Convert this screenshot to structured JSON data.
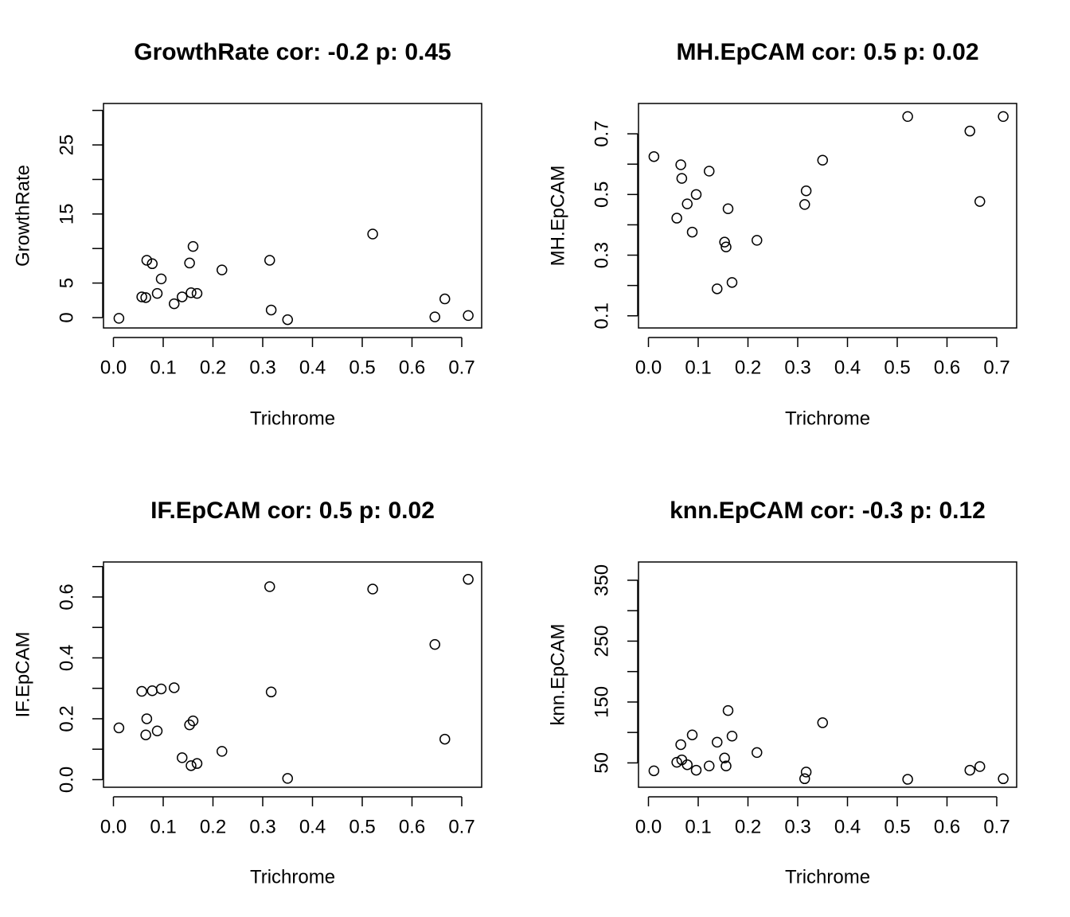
{
  "chart_data": [
    {
      "type": "scatter",
      "title": "GrowthRate cor: -0.2 p: 0.45",
      "xlabel": "Trichrome",
      "ylabel": "GrowthRate",
      "xlim": [
        -0.02,
        0.74
      ],
      "ylim": [
        -1.5,
        31
      ],
      "x_ticks": [
        0.0,
        0.1,
        0.2,
        0.3,
        0.4,
        0.5,
        0.6,
        0.7
      ],
      "x_tick_labels": [
        "0.0",
        "0.1",
        "0.2",
        "0.3",
        "0.4",
        "0.5",
        "0.6",
        "0.7"
      ],
      "y_ticks": [
        0,
        5,
        10,
        15,
        20,
        25,
        30
      ],
      "y_tick_labels": [
        "0",
        "5",
        "",
        "15",
        "",
        "25",
        ""
      ],
      "points": [
        {
          "x": 0.011,
          "y": -0.1
        },
        {
          "x": 0.057,
          "y": 3.0
        },
        {
          "x": 0.065,
          "y": 2.9
        },
        {
          "x": 0.067,
          "y": 8.3
        },
        {
          "x": 0.078,
          "y": 7.8
        },
        {
          "x": 0.088,
          "y": 3.5
        },
        {
          "x": 0.096,
          "y": 5.6
        },
        {
          "x": 0.122,
          "y": 2.0
        },
        {
          "x": 0.138,
          "y": 3.0
        },
        {
          "x": 0.153,
          "y": 7.9
        },
        {
          "x": 0.156,
          "y": 3.6
        },
        {
          "x": 0.16,
          "y": 10.3
        },
        {
          "x": 0.168,
          "y": 3.5
        },
        {
          "x": 0.218,
          "y": 6.9
        },
        {
          "x": 0.314,
          "y": 8.3
        },
        {
          "x": 0.317,
          "y": 1.1
        },
        {
          "x": 0.35,
          "y": -0.3
        },
        {
          "x": 0.521,
          "y": 12.1
        },
        {
          "x": 0.646,
          "y": 0.1
        },
        {
          "x": 0.666,
          "y": 2.7
        },
        {
          "x": 0.713,
          "y": 0.3
        }
      ]
    },
    {
      "type": "scatter",
      "title": "MH.EpCAM cor: 0.5 p: 0.02",
      "xlabel": "Trichrome",
      "ylabel": "MH.EpCAM",
      "xlim": [
        -0.02,
        0.74
      ],
      "ylim": [
        0.06,
        0.8
      ],
      "x_ticks": [
        0.0,
        0.1,
        0.2,
        0.3,
        0.4,
        0.5,
        0.6,
        0.7
      ],
      "x_tick_labels": [
        "0.0",
        "0.1",
        "0.2",
        "0.3",
        "0.4",
        "0.5",
        "0.6",
        "0.7"
      ],
      "y_ticks": [
        0.1,
        0.2,
        0.3,
        0.4,
        0.5,
        0.6,
        0.7
      ],
      "y_tick_labels": [
        "0.1",
        "",
        "0.3",
        "",
        "0.5",
        "",
        "0.7"
      ],
      "points": [
        {
          "x": 0.011,
          "y": 0.625
        },
        {
          "x": 0.057,
          "y": 0.422
        },
        {
          "x": 0.065,
          "y": 0.598
        },
        {
          "x": 0.067,
          "y": 0.553
        },
        {
          "x": 0.078,
          "y": 0.469
        },
        {
          "x": 0.088,
          "y": 0.376
        },
        {
          "x": 0.096,
          "y": 0.5
        },
        {
          "x": 0.122,
          "y": 0.577
        },
        {
          "x": 0.138,
          "y": 0.189
        },
        {
          "x": 0.153,
          "y": 0.343
        },
        {
          "x": 0.156,
          "y": 0.327
        },
        {
          "x": 0.16,
          "y": 0.453
        },
        {
          "x": 0.168,
          "y": 0.21
        },
        {
          "x": 0.218,
          "y": 0.349
        },
        {
          "x": 0.314,
          "y": 0.467
        },
        {
          "x": 0.317,
          "y": 0.512
        },
        {
          "x": 0.35,
          "y": 0.613
        },
        {
          "x": 0.521,
          "y": 0.757
        },
        {
          "x": 0.646,
          "y": 0.709
        },
        {
          "x": 0.666,
          "y": 0.477
        },
        {
          "x": 0.713,
          "y": 0.757
        }
      ]
    },
    {
      "type": "scatter",
      "title": "IF.EpCAM cor: 0.5 p: 0.02",
      "xlabel": "Trichrome",
      "ylabel": "IF.EpCAM",
      "xlim": [
        -0.02,
        0.74
      ],
      "ylim": [
        -0.025,
        0.715
      ],
      "x_ticks": [
        0.0,
        0.1,
        0.2,
        0.3,
        0.4,
        0.5,
        0.6,
        0.7
      ],
      "x_tick_labels": [
        "0.0",
        "0.1",
        "0.2",
        "0.3",
        "0.4",
        "0.5",
        "0.6",
        "0.7"
      ],
      "y_ticks": [
        0.0,
        0.1,
        0.2,
        0.3,
        0.4,
        0.5,
        0.6,
        0.7
      ],
      "y_tick_labels": [
        "0.0",
        "",
        "0.2",
        "",
        "0.4",
        "",
        "0.6",
        ""
      ],
      "points": [
        {
          "x": 0.011,
          "y": 0.17
        },
        {
          "x": 0.057,
          "y": 0.29
        },
        {
          "x": 0.065,
          "y": 0.147
        },
        {
          "x": 0.067,
          "y": 0.2
        },
        {
          "x": 0.078,
          "y": 0.292
        },
        {
          "x": 0.088,
          "y": 0.16
        },
        {
          "x": 0.096,
          "y": 0.298
        },
        {
          "x": 0.122,
          "y": 0.302
        },
        {
          "x": 0.138,
          "y": 0.072
        },
        {
          "x": 0.153,
          "y": 0.18
        },
        {
          "x": 0.156,
          "y": 0.046
        },
        {
          "x": 0.16,
          "y": 0.193
        },
        {
          "x": 0.168,
          "y": 0.053
        },
        {
          "x": 0.218,
          "y": 0.093
        },
        {
          "x": 0.314,
          "y": 0.634
        },
        {
          "x": 0.317,
          "y": 0.288
        },
        {
          "x": 0.35,
          "y": 0.004
        },
        {
          "x": 0.521,
          "y": 0.626
        },
        {
          "x": 0.646,
          "y": 0.444
        },
        {
          "x": 0.666,
          "y": 0.133
        },
        {
          "x": 0.713,
          "y": 0.658
        }
      ]
    },
    {
      "type": "scatter",
      "title": "knn.EpCAM cor: -0.3 p: 0.12",
      "xlabel": "Trichrome",
      "ylabel": "knn.EpCAM",
      "xlim": [
        -0.02,
        0.74
      ],
      "ylim": [
        10,
        380
      ],
      "x_ticks": [
        0.0,
        0.1,
        0.2,
        0.3,
        0.4,
        0.5,
        0.6,
        0.7
      ],
      "x_tick_labels": [
        "0.0",
        "0.1",
        "0.2",
        "0.3",
        "0.4",
        "0.5",
        "0.6",
        "0.7"
      ],
      "y_ticks": [
        50,
        100,
        150,
        200,
        250,
        300,
        350
      ],
      "y_tick_labels": [
        "50",
        "",
        "150",
        "",
        "250",
        "",
        "350"
      ],
      "points": [
        {
          "x": 0.011,
          "y": 37
        },
        {
          "x": 0.057,
          "y": 51
        },
        {
          "x": 0.065,
          "y": 80
        },
        {
          "x": 0.067,
          "y": 55
        },
        {
          "x": 0.078,
          "y": 47
        },
        {
          "x": 0.088,
          "y": 96
        },
        {
          "x": 0.096,
          "y": 38
        },
        {
          "x": 0.122,
          "y": 45
        },
        {
          "x": 0.138,
          "y": 84
        },
        {
          "x": 0.153,
          "y": 58
        },
        {
          "x": 0.156,
          "y": 45
        },
        {
          "x": 0.16,
          "y": 136
        },
        {
          "x": 0.168,
          "y": 94
        },
        {
          "x": 0.218,
          "y": 67
        },
        {
          "x": 0.314,
          "y": 24
        },
        {
          "x": 0.317,
          "y": 35
        },
        {
          "x": 0.35,
          "y": 116
        },
        {
          "x": 0.521,
          "y": 23
        },
        {
          "x": 0.646,
          "y": 38
        },
        {
          "x": 0.666,
          "y": 44
        },
        {
          "x": 0.713,
          "y": 24
        }
      ]
    }
  ]
}
